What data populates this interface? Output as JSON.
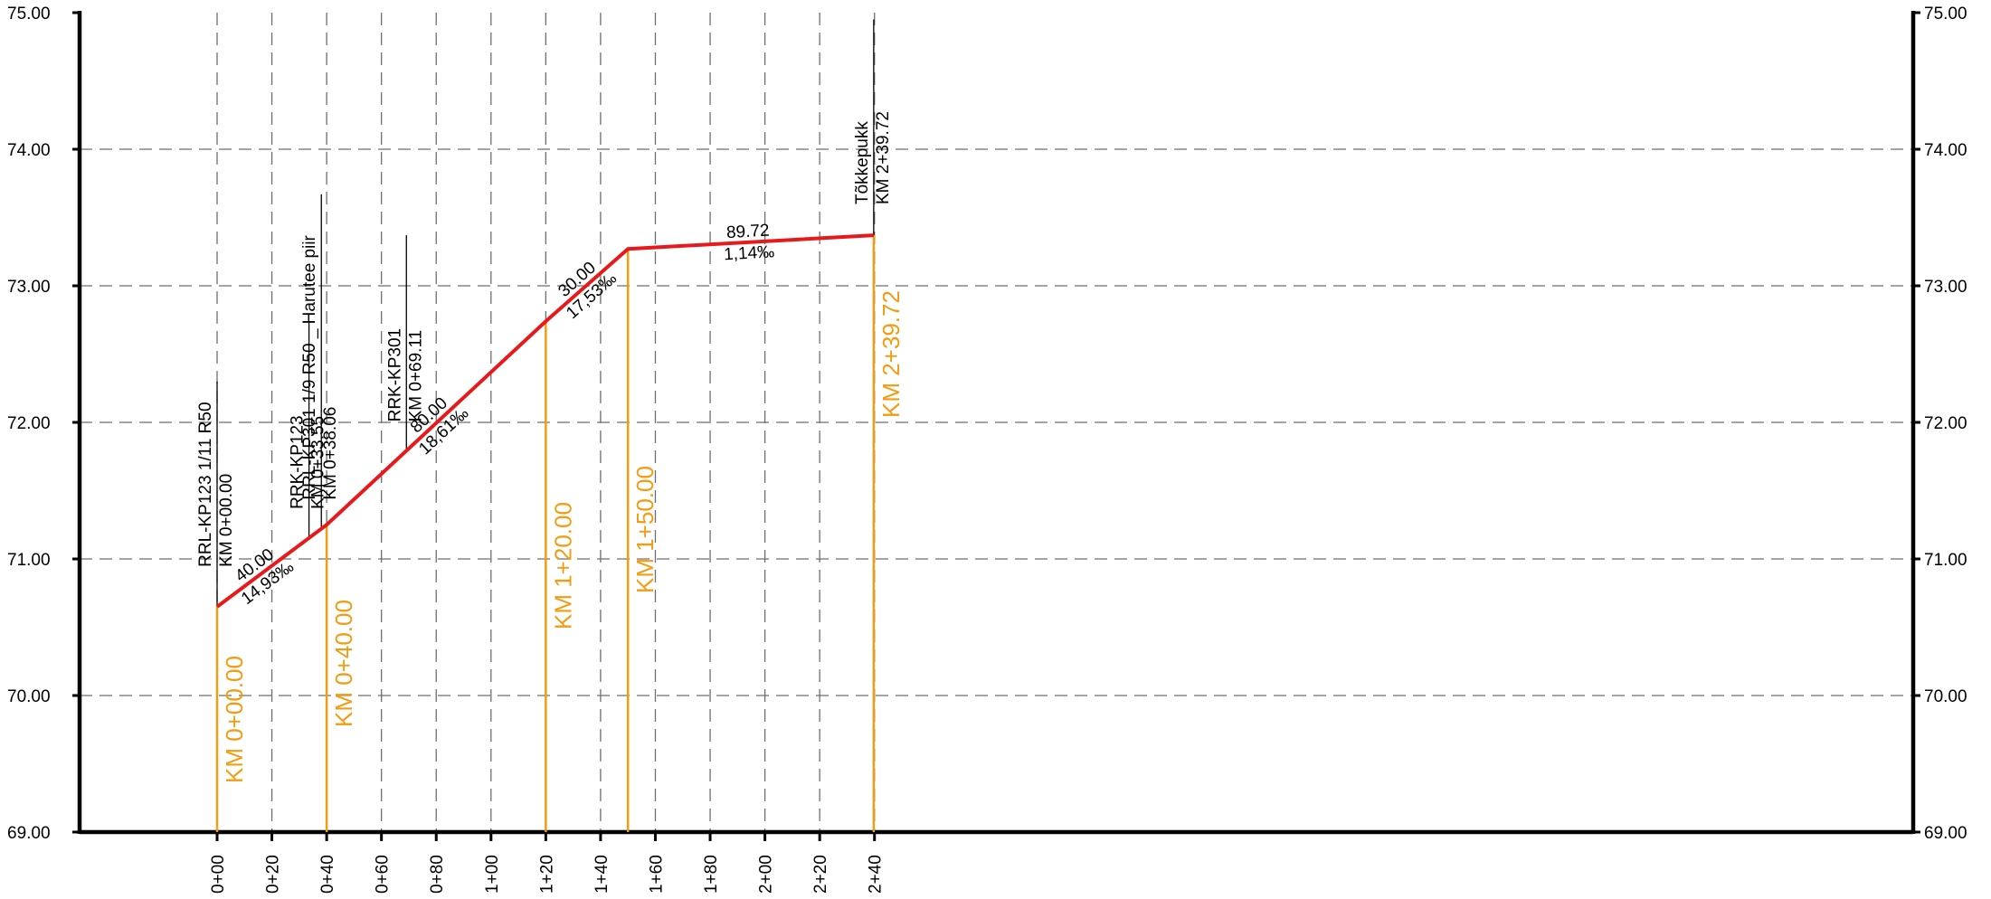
{
  "chart_data": {
    "type": "line",
    "xlim": [
      -50,
      250
    ],
    "ylim": [
      69.0,
      75.0
    ],
    "grid": true,
    "y_ticks": [
      {
        "value": 69.0,
        "label": "69.00"
      },
      {
        "value": 70.0,
        "label": "70.00"
      },
      {
        "value": 71.0,
        "label": "71.00"
      },
      {
        "value": 72.0,
        "label": "72.00"
      },
      {
        "value": 73.0,
        "label": "73.00"
      },
      {
        "value": 74.0,
        "label": "74.00"
      },
      {
        "value": 75.0,
        "label": "75.00"
      }
    ],
    "x_ticks": [
      {
        "value": 0,
        "label": "0+00"
      },
      {
        "value": 20,
        "label": "0+20"
      },
      {
        "value": 40,
        "label": "0+40"
      },
      {
        "value": 60,
        "label": "0+60"
      },
      {
        "value": 80,
        "label": "0+80"
      },
      {
        "value": 100,
        "label": "1+00"
      },
      {
        "value": 120,
        "label": "1+20"
      },
      {
        "value": 140,
        "label": "1+40"
      },
      {
        "value": 160,
        "label": "1+60"
      },
      {
        "value": 180,
        "label": "1+80"
      },
      {
        "value": 200,
        "label": "2+00"
      },
      {
        "value": 220,
        "label": "2+20"
      },
      {
        "value": 240,
        "label": "2+40"
      }
    ],
    "profile": {
      "color": "#e8191b",
      "x": [
        0,
        40,
        120,
        150,
        239.72
      ],
      "y": [
        70.65,
        71.25,
        72.74,
        73.27,
        73.37
      ]
    },
    "segments": [
      {
        "mid_x": 16,
        "length": "40.00",
        "grade": "14,93‰"
      },
      {
        "mid_x": 80,
        "length": "80.00",
        "grade": "18,61‰"
      },
      {
        "mid_x": 134,
        "length": "30.00",
        "grade": "17,53‰"
      },
      {
        "mid_x": 194,
        "length": "89.72",
        "grade": "1,14‰"
      }
    ],
    "stations": [
      {
        "x": 0,
        "label": "KM 0+00.00"
      },
      {
        "x": 40,
        "label": "KM 0+40.00"
      },
      {
        "x": 120,
        "label": "KM 1+20.00"
      },
      {
        "x": 150,
        "label": "KM 1+50.00"
      },
      {
        "x": 239.72,
        "label": "KM 2+39.72"
      }
    ],
    "annotations": [
      {
        "x": 0,
        "top_y": 72.3,
        "line1": "RRL-KP123  1/11 R50",
        "line2": "KM 0+00.00"
      },
      {
        "x": 33.55,
        "top_y": 72.73,
        "line1": "RRK-KP123",
        "line2": "KM 0+33.55"
      },
      {
        "x": 38.06,
        "top_y": 73.67,
        "line1": "RRL-KP301 1/9 R50 _ Harutee piir",
        "line2": "KM 0+38.06"
      },
      {
        "x": 69.11,
        "top_y": 73.37,
        "line1": "RRK-KP301",
        "line2": "KM 0+69.11"
      },
      {
        "x": 239.72,
        "top_y": 74.95,
        "line1": "Tõkkepukk",
        "line2": "KM 2+39.72"
      }
    ],
    "colors": {
      "profile": "#e8191b",
      "station": "#f39c12",
      "grid": "#6e6e6e",
      "axis": "#000000"
    }
  }
}
